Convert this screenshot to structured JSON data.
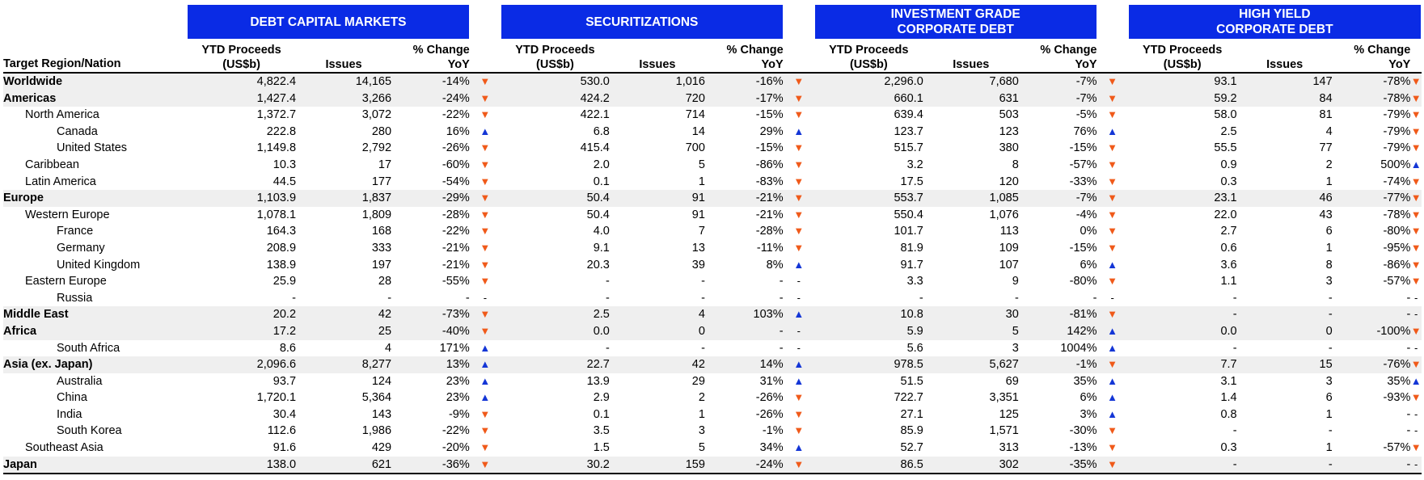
{
  "colors": {
    "banner": "#0a2be5",
    "up": "#1436d6",
    "down": "#f05a1a",
    "shade": "#efefef"
  },
  "groups": [
    {
      "title_lines": [
        "DEBT CAPITAL MARKETS"
      ]
    },
    {
      "title_lines": [
        "SECURITIZATIONS"
      ]
    },
    {
      "title_lines": [
        "INVESTMENT GRADE",
        "CORPORATE DEBT"
      ]
    },
    {
      "title_lines": [
        "HIGH YIELD",
        "CORPORATE DEBT"
      ]
    }
  ],
  "headers": {
    "region": "Target Region/Nation",
    "proceeds_1": "YTD Proceeds",
    "proceeds_2": "(US$b)",
    "issues": "Issues",
    "change_1": "% Change",
    "change_2": "YoY"
  },
  "rows": [
    {
      "name": "Worldwide",
      "level": 0,
      "bold": true,
      "shade": true,
      "cells": [
        [
          "4,822.4",
          "14,165",
          "-14%",
          "down"
        ],
        [
          "530.0",
          "1,016",
          "-16%",
          "down"
        ],
        [
          "2,296.0",
          "7,680",
          "-7%",
          "down"
        ],
        [
          "93.1",
          "147",
          "-78%",
          "down"
        ]
      ]
    },
    {
      "name": "Americas",
      "level": 0,
      "bold": true,
      "shade": true,
      "cells": [
        [
          "1,427.4",
          "3,266",
          "-24%",
          "down"
        ],
        [
          "424.2",
          "720",
          "-17%",
          "down"
        ],
        [
          "660.1",
          "631",
          "-7%",
          "down"
        ],
        [
          "59.2",
          "84",
          "-78%",
          "down"
        ]
      ]
    },
    {
      "name": "North America",
      "level": 1,
      "bold": false,
      "shade": false,
      "cells": [
        [
          "1,372.7",
          "3,072",
          "-22%",
          "down"
        ],
        [
          "422.1",
          "714",
          "-15%",
          "down"
        ],
        [
          "639.4",
          "503",
          "-5%",
          "down"
        ],
        [
          "58.0",
          "81",
          "-79%",
          "down"
        ]
      ]
    },
    {
      "name": "Canada",
      "level": 2,
      "bold": false,
      "shade": false,
      "cells": [
        [
          "222.8",
          "280",
          "16%",
          "up"
        ],
        [
          "6.8",
          "14",
          "29%",
          "up"
        ],
        [
          "123.7",
          "123",
          "76%",
          "up"
        ],
        [
          "2.5",
          "4",
          "-79%",
          "down"
        ]
      ]
    },
    {
      "name": "United States",
      "level": 2,
      "bold": false,
      "shade": false,
      "cells": [
        [
          "1,149.8",
          "2,792",
          "-26%",
          "down"
        ],
        [
          "415.4",
          "700",
          "-15%",
          "down"
        ],
        [
          "515.7",
          "380",
          "-15%",
          "down"
        ],
        [
          "55.5",
          "77",
          "-79%",
          "down"
        ]
      ]
    },
    {
      "name": "Caribbean",
      "level": 1,
      "bold": false,
      "shade": false,
      "cells": [
        [
          "10.3",
          "17",
          "-60%",
          "down"
        ],
        [
          "2.0",
          "5",
          "-86%",
          "down"
        ],
        [
          "3.2",
          "8",
          "-57%",
          "down"
        ],
        [
          "0.9",
          "2",
          "500%",
          "up"
        ]
      ]
    },
    {
      "name": "Latin America",
      "level": 1,
      "bold": false,
      "shade": false,
      "cells": [
        [
          "44.5",
          "177",
          "-54%",
          "down"
        ],
        [
          "0.1",
          "1",
          "-83%",
          "down"
        ],
        [
          "17.5",
          "120",
          "-33%",
          "down"
        ],
        [
          "0.3",
          "1",
          "-74%",
          "down"
        ]
      ]
    },
    {
      "name": "Europe",
      "level": 0,
      "bold": true,
      "shade": true,
      "cells": [
        [
          "1,103.9",
          "1,837",
          "-29%",
          "down"
        ],
        [
          "50.4",
          "91",
          "-21%",
          "down"
        ],
        [
          "553.7",
          "1,085",
          "-7%",
          "down"
        ],
        [
          "23.1",
          "46",
          "-77%",
          "down"
        ]
      ]
    },
    {
      "name": "Western Europe",
      "level": 1,
      "bold": false,
      "shade": false,
      "cells": [
        [
          "1,078.1",
          "1,809",
          "-28%",
          "down"
        ],
        [
          "50.4",
          "91",
          "-21%",
          "down"
        ],
        [
          "550.4",
          "1,076",
          "-4%",
          "down"
        ],
        [
          "22.0",
          "43",
          "-78%",
          "down"
        ]
      ]
    },
    {
      "name": "France",
      "level": 2,
      "bold": false,
      "shade": false,
      "cells": [
        [
          "164.3",
          "168",
          "-22%",
          "down"
        ],
        [
          "4.0",
          "7",
          "-28%",
          "down"
        ],
        [
          "101.7",
          "113",
          "0%",
          "down"
        ],
        [
          "2.7",
          "6",
          "-80%",
          "down"
        ]
      ]
    },
    {
      "name": "Germany",
      "level": 2,
      "bold": false,
      "shade": false,
      "cells": [
        [
          "208.9",
          "333",
          "-21%",
          "down"
        ],
        [
          "9.1",
          "13",
          "-11%",
          "down"
        ],
        [
          "81.9",
          "109",
          "-15%",
          "down"
        ],
        [
          "0.6",
          "1",
          "-95%",
          "down"
        ]
      ]
    },
    {
      "name": "United Kingdom",
      "level": 2,
      "bold": false,
      "shade": false,
      "cells": [
        [
          "138.9",
          "197",
          "-21%",
          "down"
        ],
        [
          "20.3",
          "39",
          "8%",
          "up"
        ],
        [
          "91.7",
          "107",
          "6%",
          "up"
        ],
        [
          "3.6",
          "8",
          "-86%",
          "down"
        ]
      ]
    },
    {
      "name": "Eastern Europe",
      "level": 1,
      "bold": false,
      "shade": false,
      "cells": [
        [
          "25.9",
          "28",
          "-55%",
          "down"
        ],
        [
          "-",
          "-",
          "-",
          "dash"
        ],
        [
          "3.3",
          "9",
          "-80%",
          "down"
        ],
        [
          "1.1",
          "3",
          "-57%",
          "down"
        ]
      ]
    },
    {
      "name": "Russia",
      "level": 2,
      "bold": false,
      "shade": false,
      "cells": [
        [
          "-",
          "-",
          "-",
          "dash"
        ],
        [
          "-",
          "-",
          "-",
          "dash"
        ],
        [
          "-",
          "-",
          "-",
          "dash"
        ],
        [
          "-",
          "-",
          "-",
          "dash"
        ]
      ]
    },
    {
      "name": "Middle East",
      "level": 0,
      "bold": true,
      "shade": true,
      "cells": [
        [
          "20.2",
          "42",
          "-73%",
          "down"
        ],
        [
          "2.5",
          "4",
          "103%",
          "up"
        ],
        [
          "10.8",
          "30",
          "-81%",
          "down"
        ],
        [
          "-",
          "-",
          "-",
          "dash"
        ]
      ]
    },
    {
      "name": "Africa",
      "level": 0,
      "bold": true,
      "shade": true,
      "cells": [
        [
          "17.2",
          "25",
          "-40%",
          "down"
        ],
        [
          "0.0",
          "0",
          "-",
          "dash"
        ],
        [
          "5.9",
          "5",
          "142%",
          "up"
        ],
        [
          "0.0",
          "0",
          "-100%",
          "down"
        ]
      ]
    },
    {
      "name": "South Africa",
      "level": 2,
      "bold": false,
      "shade": false,
      "cells": [
        [
          "8.6",
          "4",
          "171%",
          "up"
        ],
        [
          "-",
          "-",
          "-",
          "dash"
        ],
        [
          "5.6",
          "3",
          "1004%",
          "up"
        ],
        [
          "-",
          "-",
          "-",
          "dash"
        ]
      ]
    },
    {
      "name": "Asia (ex. Japan)",
      "level": 0,
      "bold": true,
      "shade": true,
      "cells": [
        [
          "2,096.6",
          "8,277",
          "13%",
          "up"
        ],
        [
          "22.7",
          "42",
          "14%",
          "up"
        ],
        [
          "978.5",
          "5,627",
          "-1%",
          "down"
        ],
        [
          "7.7",
          "15",
          "-76%",
          "down"
        ]
      ]
    },
    {
      "name": "Australia",
      "level": 2,
      "bold": false,
      "shade": false,
      "cells": [
        [
          "93.7",
          "124",
          "23%",
          "up"
        ],
        [
          "13.9",
          "29",
          "31%",
          "up"
        ],
        [
          "51.5",
          "69",
          "35%",
          "up"
        ],
        [
          "3.1",
          "3",
          "35%",
          "up"
        ]
      ]
    },
    {
      "name": "China",
      "level": 2,
      "bold": false,
      "shade": false,
      "cells": [
        [
          "1,720.1",
          "5,364",
          "23%",
          "up"
        ],
        [
          "2.9",
          "2",
          "-26%",
          "down"
        ],
        [
          "722.7",
          "3,351",
          "6%",
          "up"
        ],
        [
          "1.4",
          "6",
          "-93%",
          "down"
        ]
      ]
    },
    {
      "name": "India",
      "level": 2,
      "bold": false,
      "shade": false,
      "cells": [
        [
          "30.4",
          "143",
          "-9%",
          "down"
        ],
        [
          "0.1",
          "1",
          "-26%",
          "down"
        ],
        [
          "27.1",
          "125",
          "3%",
          "up"
        ],
        [
          "0.8",
          "1",
          "-",
          "dash"
        ]
      ]
    },
    {
      "name": "South Korea",
      "level": 2,
      "bold": false,
      "shade": false,
      "cells": [
        [
          "112.6",
          "1,986",
          "-22%",
          "down"
        ],
        [
          "3.5",
          "3",
          "-1%",
          "down"
        ],
        [
          "85.9",
          "1,571",
          "-30%",
          "down"
        ],
        [
          "-",
          "-",
          "-",
          "dash"
        ]
      ]
    },
    {
      "name": "Southeast Asia",
      "level": 1,
      "bold": false,
      "shade": false,
      "cells": [
        [
          "91.6",
          "429",
          "-20%",
          "down"
        ],
        [
          "1.5",
          "5",
          "34%",
          "up"
        ],
        [
          "52.7",
          "313",
          "-13%",
          "down"
        ],
        [
          "0.3",
          "1",
          "-57%",
          "down"
        ]
      ]
    },
    {
      "name": "Japan",
      "level": 0,
      "bold": true,
      "shade": true,
      "cells": [
        [
          "138.0",
          "621",
          "-36%",
          "down"
        ],
        [
          "30.2",
          "159",
          "-24%",
          "down"
        ],
        [
          "86.5",
          "302",
          "-35%",
          "down"
        ],
        [
          "-",
          "-",
          "-",
          "dash"
        ]
      ]
    }
  ]
}
